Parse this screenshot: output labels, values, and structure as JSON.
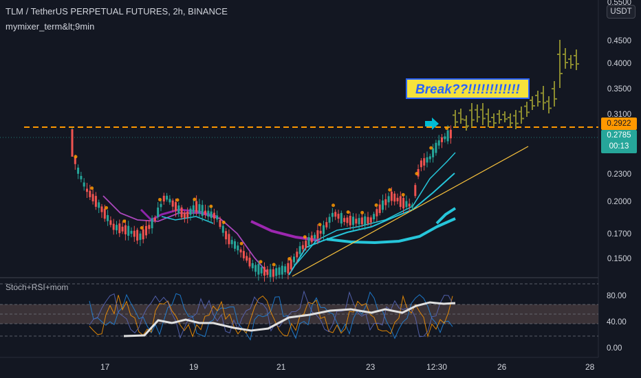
{
  "legend": {
    "title": "TLM / TetherUS PERPETUAL FUTURES, 2h, BINANCE",
    "indicator": "mymixer_term&lt;9min"
  },
  "oscillator": {
    "label": "Stoch+RSI+mom",
    "ticks": [
      "80.00",
      "40.00",
      "0.00"
    ]
  },
  "price_axis": {
    "currency": "USDT",
    "ticks": [
      "0.5500",
      "0.4500",
      "0.4000",
      "0.3500",
      "0.3100",
      "0.2300",
      "0.2000",
      "0.1700",
      "0.1500"
    ],
    "level_badge": "0.2922",
    "last_price": "0.2785",
    "countdown": "00:13"
  },
  "time_axis": {
    "labels": [
      "17",
      "19",
      "21",
      "23",
      "12:30",
      "26",
      "28"
    ]
  },
  "annotation": {
    "text": "Break??!!!!!!!!!!!!"
  },
  "colors": {
    "background": "#131722",
    "up": "#26a69a",
    "down": "#ef5350",
    "level_line": "#ff9800",
    "last_price_badge": "#26a69a",
    "projection": "#8b8b2f",
    "annotation_bg": "#f5e23b",
    "annotation_text": "#2962ff"
  }
}
